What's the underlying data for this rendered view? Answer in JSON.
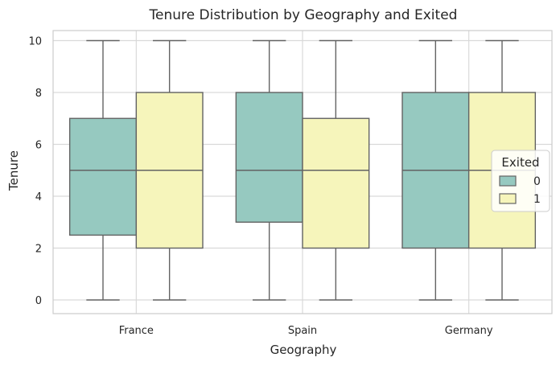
{
  "chart_data": {
    "type": "box",
    "title": "Tenure Distribution by Geography and Exited",
    "xlabel": "Geography",
    "ylabel": "Tenure",
    "categories": [
      "France",
      "Spain",
      "Germany"
    ],
    "ylim": [
      -0.5,
      10.5
    ],
    "yticks": [
      0,
      2,
      4,
      6,
      8,
      10
    ],
    "grid": true,
    "legend": {
      "title": "Exited",
      "position": "right"
    },
    "series": [
      {
        "name": "0",
        "color": "#96c9c0",
        "boxes": [
          {
            "min": 0,
            "q1": 2.5,
            "median": 5,
            "q3": 7,
            "max": 10
          },
          {
            "min": 0,
            "q1": 3,
            "median": 5,
            "q3": 8,
            "max": 10
          },
          {
            "min": 0,
            "q1": 2,
            "median": 5,
            "q3": 8,
            "max": 10
          }
        ]
      },
      {
        "name": "1",
        "color": "#f6f5bb",
        "boxes": [
          {
            "min": 0,
            "q1": 2,
            "median": 5,
            "q3": 8,
            "max": 10
          },
          {
            "min": 0,
            "q1": 2,
            "median": 5,
            "q3": 7,
            "max": 10
          },
          {
            "min": 0,
            "q1": 2,
            "median": 5,
            "q3": 8,
            "max": 10
          }
        ]
      }
    ]
  }
}
